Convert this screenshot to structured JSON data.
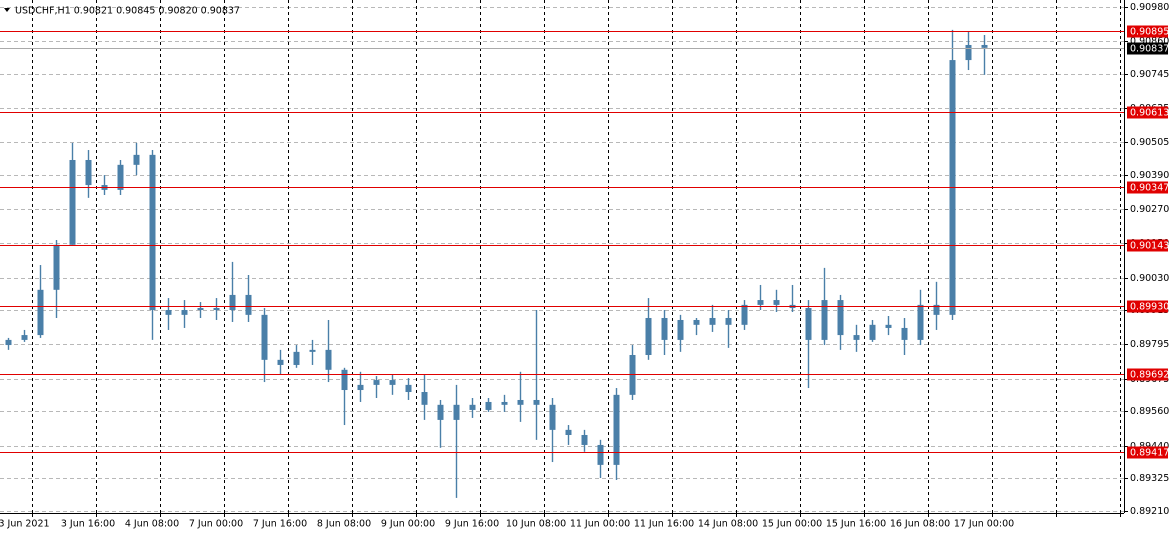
{
  "chart_data": {
    "type": "candlestick",
    "title": "USDCHF,H1  0.90821 0.90845 0.90820 0.90837",
    "categories": [
      null,
      "3 Jun 2021",
      null,
      null,
      null,
      "3 Jun 16:00",
      null,
      null,
      null,
      "4 Jun 08:00",
      null,
      null,
      null,
      "7 Jun 00:00",
      null,
      null,
      null,
      "7 Jun 16:00",
      null,
      null,
      null,
      "8 Jun 08:00",
      null,
      null,
      null,
      "9 Jun 00:00",
      null,
      null,
      null,
      "9 Jun 16:00",
      null,
      null,
      null,
      "10 Jun 08:00",
      null,
      null,
      null,
      "11 Jun 00:00",
      null,
      null,
      null,
      "11 Jun 16:00",
      null,
      null,
      null,
      "14 Jun 08:00",
      null,
      null,
      null,
      "15 Jun 00:00",
      null,
      null,
      null,
      "15 Jun 16:00",
      null,
      null,
      null,
      "16 Jun 08:00",
      null,
      null,
      null,
      "17 Jun 00:00",
      null,
      null,
      null,
      null,
      null,
      null,
      null,
      null
    ],
    "open": [
      0.89793,
      0.89811,
      0.89828,
      0.89987,
      0.90145,
      0.90443,
      0.90355,
      0.90338,
      0.90426,
      0.90461,
      0.89916,
      0.89899,
      0.89916,
      0.89923,
      0.89916,
      0.89969,
      0.89899,
      0.89741,
      0.89723,
      0.89769,
      0.89776,
      0.89706,
      0.89635,
      0.89653,
      0.8967,
      0.89653,
      0.89628,
      0.89583,
      0.8953,
      0.89583,
      0.89565,
      0.89593,
      0.89583,
      0.896,
      0.89583,
      0.89495,
      0.89477,
      0.89442,
      0.89372,
      0.89618,
      0.89758,
      0.89888,
      0.89811,
      0.89881,
      0.89864,
      0.89888,
      0.89864,
      0.89934,
      0.89951,
      0.89934,
      0.89923,
      0.89811,
      0.89951,
      0.89828,
      0.89811,
      0.89864,
      0.89853,
      0.89811,
      0.89934,
      0.89899,
      0.90794,
      0.90847,
      null,
      null,
      null,
      null,
      null,
      null,
      null,
      null
    ],
    "high": [
      0.89818,
      0.89846,
      0.90074,
      0.90162,
      0.90503,
      0.90478,
      0.9039,
      0.90443,
      0.90503,
      0.90478,
      0.89958,
      0.89951,
      0.89944,
      0.89958,
      0.90085,
      0.90039,
      0.89923,
      0.89776,
      0.89793,
      0.89811,
      0.89881,
      0.89713,
      0.89699,
      0.89684,
      0.89688,
      0.89677,
      0.89688,
      0.896,
      0.89653,
      0.89607,
      0.89607,
      0.89618,
      0.89699,
      0.89916,
      0.89607,
      0.89512,
      0.89495,
      0.8946,
      0.89642,
      0.89793,
      0.89958,
      0.89916,
      0.89899,
      0.89888,
      0.89934,
      0.89916,
      0.89951,
      0.90004,
      0.89987,
      0.90004,
      0.89951,
      0.90064,
      0.89969,
      0.89864,
      0.89881,
      0.89895,
      0.89888,
      0.89987,
      0.90015,
      0.909,
      0.90893,
      0.90882,
      null,
      null,
      null,
      null,
      null,
      null,
      null,
      null
    ],
    "low": [
      0.89776,
      0.89804,
      0.89818,
      0.89888,
      0.90145,
      0.9031,
      0.9032,
      0.9032,
      0.9039,
      0.89811,
      0.89846,
      0.89853,
      0.89888,
      0.89881,
      0.89874,
      0.89874,
      0.89663,
      0.89688,
      0.89713,
      0.89723,
      0.89663,
      0.89512,
      0.89593,
      0.89607,
      0.89618,
      0.896,
      0.8953,
      0.89432,
      0.89256,
      0.89537,
      0.89558,
      0.89558,
      0.89523,
      0.8946,
      0.89382,
      0.89442,
      0.89418,
      0.89326,
      0.89319,
      0.896,
      0.89741,
      0.89758,
      0.89769,
      0.89828,
      0.89839,
      0.89783,
      0.89846,
      0.89916,
      0.89909,
      0.89909,
      0.89642,
      0.89793,
      0.89776,
      0.89769,
      0.89804,
      0.89828,
      0.89758,
      0.89793,
      0.89846,
      0.89881,
      0.90759,
      0.90742,
      null,
      null,
      null,
      null,
      null,
      null,
      null,
      null
    ],
    "close": [
      0.89811,
      0.89828,
      0.89987,
      0.90145,
      0.90443,
      0.90355,
      0.90338,
      0.90426,
      0.90461,
      0.89916,
      0.89899,
      0.89916,
      0.89923,
      0.89916,
      0.89969,
      0.89899,
      0.89741,
      0.89723,
      0.89769,
      0.89776,
      0.89706,
      0.89635,
      0.89653,
      0.8967,
      0.89653,
      0.89628,
      0.89583,
      0.8953,
      0.89583,
      0.89565,
      0.89593,
      0.89583,
      0.896,
      0.89583,
      0.89495,
      0.89477,
      0.89442,
      0.89372,
      0.89618,
      0.89758,
      0.89888,
      0.89811,
      0.89881,
      0.89864,
      0.89888,
      0.89864,
      0.89934,
      0.89951,
      0.89934,
      0.89923,
      0.89811,
      0.89951,
      0.89828,
      0.89811,
      0.89864,
      0.89853,
      0.89811,
      0.89934,
      0.89899,
      0.90794,
      0.90847,
      0.90837,
      null,
      null,
      null,
      null,
      null,
      null,
      null,
      null
    ],
    "color": "#4a7fa8",
    "ylim": [
      0.89203,
      0.91005
    ],
    "yticks": [
      {
        "value": 0.9098,
        "label": "0.90980"
      },
      {
        "value": 0.9086,
        "label": "0.90860"
      },
      0.90745,
      0.90625,
      0.90505,
      {
        "value": 0.9039,
        "label": "0.90390"
      },
      {
        "value": 0.9027,
        "label": "0.90270"
      },
      {
        "value": 0.9015,
        "label": "0.90150"
      },
      {
        "value": 0.9003,
        "label": "0.90030"
      },
      0.89915,
      0.89795,
      0.89675,
      {
        "value": 0.8956,
        "label": "0.89560"
      },
      {
        "value": 0.8944,
        "label": "0.89440"
      },
      0.89325,
      {
        "value": 0.8921,
        "label": "0.89210"
      }
    ],
    "levels": [
      0.90895,
      0.90613,
      0.90347,
      0.90143,
      {
        "value": 0.8993,
        "label": "0.89930"
      },
      0.89692,
      0.89417
    ],
    "level_color": "#e00000",
    "current_price": 0.90837,
    "grid": true
  }
}
